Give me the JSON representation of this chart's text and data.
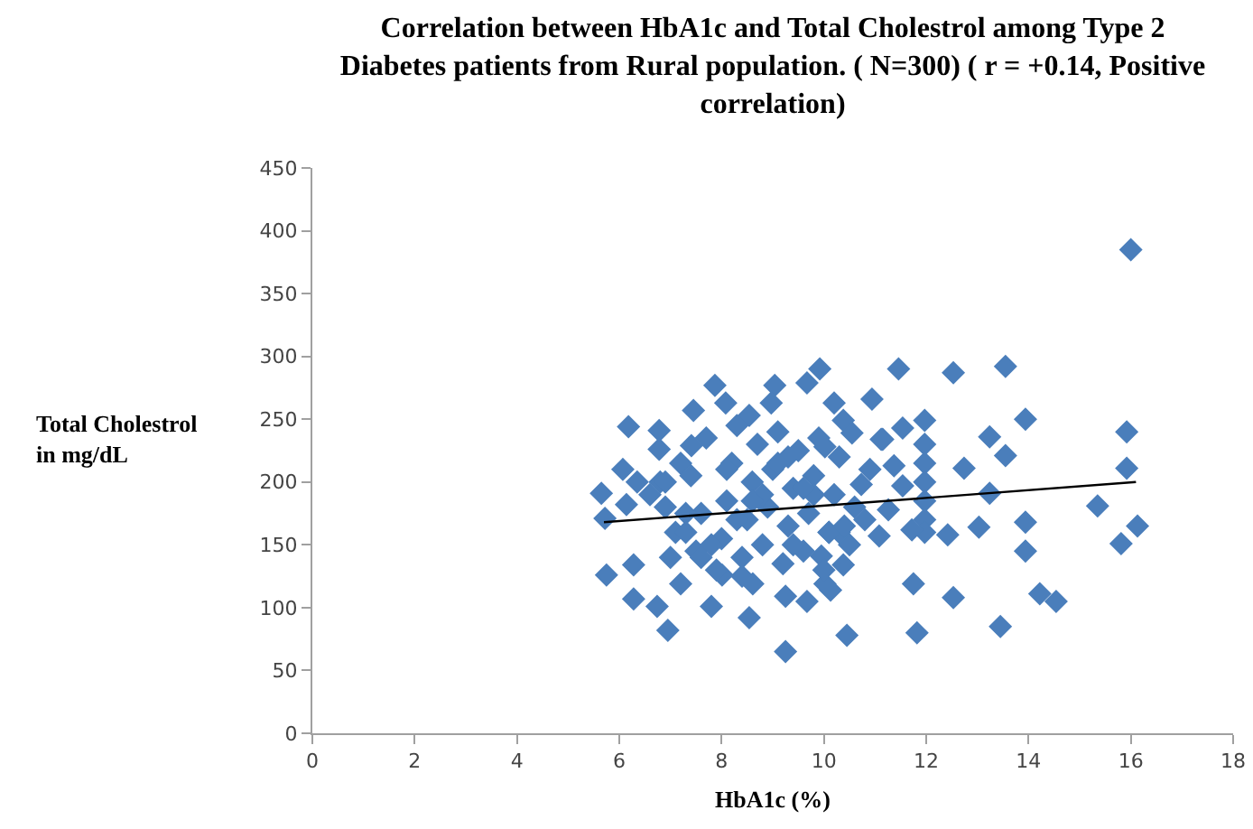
{
  "chart_data": {
    "type": "scatter",
    "title": "Correlation between HbA1c and Total Cholestrol among Type 2\nDiabetes patients from Rural population. ( N=300) ( r = +0.14, Positive\ncorrelation)",
    "xlabel": "HbA1c (%)",
    "ylabel": "Total Cholestrol\nin mg/dL",
    "xlim": [
      0,
      18
    ],
    "xticks": [
      0,
      2,
      4,
      6,
      8,
      10,
      12,
      14,
      16,
      18
    ],
    "ylim": [
      0,
      450
    ],
    "yticks": [
      0,
      50,
      100,
      150,
      200,
      250,
      300,
      350,
      400,
      450
    ],
    "grid": false,
    "series": [
      {
        "color": "#4a7ebb",
        "marker": "diamond",
        "x": [
          16,
          15.92,
          15.92,
          15.35,
          16.13,
          15.81,
          11.46,
          12.53,
          13.55,
          10.94,
          13.94,
          13.94,
          13.94,
          13.24,
          13.55,
          12.74,
          13.24,
          13.03,
          12.42,
          11.75,
          12.53,
          11.82,
          13.45,
          14.22,
          14.54,
          11.97,
          11.97,
          11.97,
          11.97,
          11.97,
          11.97,
          11.97,
          11.54,
          11.15,
          11.37,
          11.54,
          11.26,
          11.08,
          11.72,
          9.92,
          9.67,
          7.87,
          9.04,
          7.45,
          8.08,
          6.18,
          6.78,
          6.78,
          6.07,
          5.65,
          5.72,
          6.14,
          6.35,
          5.75,
          6.28,
          6.28,
          6.74,
          6.95,
          7.8,
          8.54,
          9.25,
          10.45,
          9.67,
          10.13,
          10.2,
          10.38,
          10.55,
          11.12,
          10.73,
          10.9,
          10.02,
          8.97,
          8.54,
          7.41,
          9.95,
          10.38,
          10.02,
          8.61,
          9.25,
          7.2,
          8.01,
          7,
          7.1,
          6.9,
          6.8,
          7.2,
          7.5,
          7.6,
          7.4,
          7.7,
          7.9,
          8,
          8.1,
          8.2,
          8.3,
          8.4,
          8.5,
          8.6,
          8.7,
          8.8,
          8.9,
          9,
          9.1,
          9.2,
          9.3,
          9.4,
          9.5,
          9.6,
          9.7,
          9.8,
          9.9,
          10,
          10.1,
          10.2,
          10.3,
          10.5,
          10.6,
          10.8,
          7.3,
          7.8,
          8.3,
          8.8,
          9.3,
          9.8,
          10.3,
          7.6,
          8.1,
          8.6,
          9.1,
          9.6,
          10.1,
          6.6,
          6.9,
          7.3,
          8.4,
          9.4,
          10.4
        ],
        "values": [
          385,
          240,
          211,
          181,
          165,
          151,
          290,
          287,
          292,
          266,
          250,
          168,
          145,
          236,
          221,
          211,
          191,
          164,
          158,
          119,
          108,
          80,
          85,
          111,
          105,
          249,
          230,
          215,
          200,
          185,
          170,
          160,
          243,
          234,
          213,
          197,
          178,
          157,
          162,
          290,
          279,
          277,
          277,
          257,
          263,
          244,
          241,
          226,
          210,
          191,
          171,
          182,
          200,
          126,
          134,
          107,
          101,
          82,
          101,
          92,
          65,
          78,
          105,
          114,
          263,
          249,
          239,
          234,
          198,
          210,
          228,
          263,
          253,
          229,
          141,
          134,
          119,
          119,
          109,
          119,
          126,
          140,
          160,
          180,
          200,
          215,
          145,
          175,
          205,
          235,
          130,
          155,
          185,
          215,
          245,
          140,
          170,
          200,
          230,
          150,
          180,
          210,
          240,
          135,
          165,
          195,
          225,
          145,
          175,
          205,
          235,
          130,
          160,
          190,
          220,
          150,
          180,
          170,
          160,
          150,
          170,
          190,
          220,
          190,
          160,
          140,
          210,
          185,
          215,
          195,
          160,
          190,
          200,
          175,
          125,
          150,
          165
        ]
      },
      {
        "type": "line",
        "color": "#000000",
        "marker": "none",
        "x": [
          5.7,
          16.1
        ],
        "values": [
          168,
          200
        ]
      }
    ]
  }
}
